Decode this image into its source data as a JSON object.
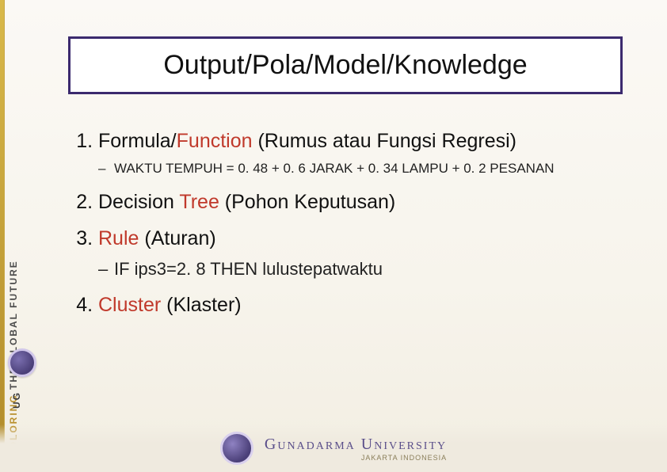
{
  "sidebar": {
    "line1": "COLORING",
    "line2": " THE GLOBAL FUTURE",
    "ug": "UG"
  },
  "title": "Output/Pola/Model/Knowledge",
  "list": {
    "item1": {
      "prefix": "Formula/",
      "highlight": "Function",
      "suffix": " (Rumus atau Fungsi Regresi)",
      "sub": "WAKTU TEMPUH = 0. 48 + 0. 6 JARAK + 0. 34 LAMPU + 0. 2 PESANAN"
    },
    "item2": {
      "prefix": "Decision ",
      "highlight": "Tree",
      "suffix": " (Pohon Keputusan)"
    },
    "item3": {
      "highlight": "Rule",
      "suffix": " (Aturan)",
      "sub": "IF ips3=2. 8  THEN lulustepatwaktu"
    },
    "item4": {
      "highlight": "Cluster",
      "suffix": " (Klaster)"
    }
  },
  "footer": {
    "university": "Gunadarma University",
    "sub": "JAKARTA INDONESIA"
  },
  "colors": {
    "title_border": "#3b2a6e",
    "highlight": "#c0392b",
    "sidebar_gold": "#b9902e",
    "crest": "#4a3f78"
  }
}
